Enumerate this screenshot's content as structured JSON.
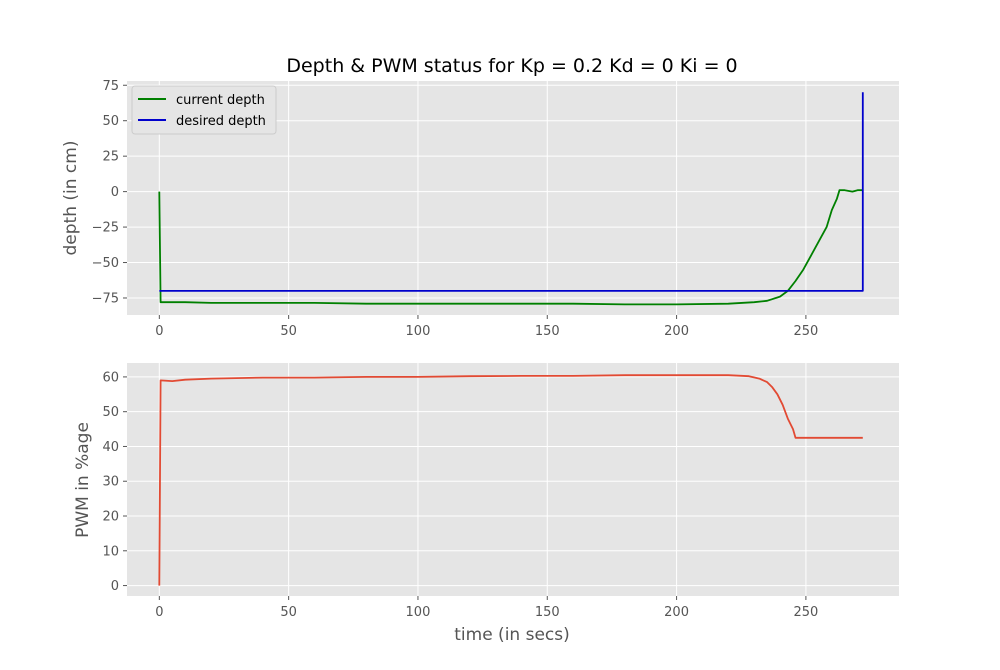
{
  "figure_title": "Depth & PWM status for Kp = 0.2 Kd = 0 Ki = 0",
  "chart_data": [
    {
      "type": "line",
      "title": "Depth & PWM status for Kp = 0.2 Kd = 0 Ki = 0",
      "xlabel": "",
      "ylabel": "depth (in cm)",
      "xlim": [
        -12.5,
        286
      ],
      "ylim": [
        -87,
        78
      ],
      "xticks": [
        0,
        50,
        100,
        150,
        200,
        250
      ],
      "xtick_labels": [
        "0",
        "50",
        "100",
        "150",
        "200",
        "250"
      ],
      "yticks": [
        75,
        50,
        25,
        0,
        -25,
        -50,
        -75
      ],
      "ytick_labels": [
        "75",
        "50",
        "25",
        "0",
        "−25",
        "−50",
        "−75"
      ],
      "grid": true,
      "legend": "top-left",
      "series": [
        {
          "name": "current depth",
          "color": "#008000",
          "x": [
            0,
            0.5,
            5,
            10,
            20,
            40,
            60,
            80,
            100,
            120,
            140,
            160,
            180,
            200,
            220,
            230,
            235,
            240,
            243,
            246,
            249,
            252,
            255,
            258,
            260,
            262,
            263,
            265,
            268,
            270,
            272
          ],
          "y": [
            0,
            -78,
            -78,
            -78,
            -78.5,
            -78.5,
            -78.5,
            -79,
            -79,
            -79,
            -79,
            -79,
            -79.5,
            -79.5,
            -79,
            -78,
            -77,
            -74,
            -70,
            -63,
            -55,
            -45,
            -35,
            -25,
            -13,
            -5,
            1,
            1,
            0,
            1,
            1
          ]
        },
        {
          "name": "desired depth",
          "color": "#0000cc",
          "x": [
            0,
            272,
            272
          ],
          "y": [
            -70,
            -70,
            70
          ]
        }
      ]
    },
    {
      "type": "line",
      "title": "",
      "xlabel": "time (in secs)",
      "ylabel": "PWM in %age",
      "xlim": [
        -12.5,
        286
      ],
      "ylim": [
        -3,
        64
      ],
      "xticks": [
        0,
        50,
        100,
        150,
        200,
        250
      ],
      "xtick_labels": [
        "0",
        "50",
        "100",
        "150",
        "200",
        "250"
      ],
      "yticks": [
        60,
        50,
        40,
        30,
        20,
        10,
        0
      ],
      "ytick_labels": [
        "60",
        "50",
        "40",
        "30",
        "20",
        "10",
        "0"
      ],
      "grid": true,
      "series": [
        {
          "color": "#e24a33",
          "x": [
            0,
            0.5,
            5,
            10,
            20,
            40,
            60,
            80,
            100,
            120,
            140,
            160,
            180,
            200,
            220,
            228,
            232,
            235,
            237,
            239,
            241,
            243,
            245,
            246,
            250,
            272
          ],
          "y": [
            0,
            59,
            58.8,
            59.2,
            59.5,
            59.8,
            59.8,
            60,
            60,
            60.2,
            60.3,
            60.3,
            60.5,
            60.5,
            60.5,
            60.2,
            59.5,
            58.5,
            57,
            55,
            52,
            48,
            45,
            42.5,
            42.5,
            42.5
          ]
        }
      ]
    }
  ]
}
